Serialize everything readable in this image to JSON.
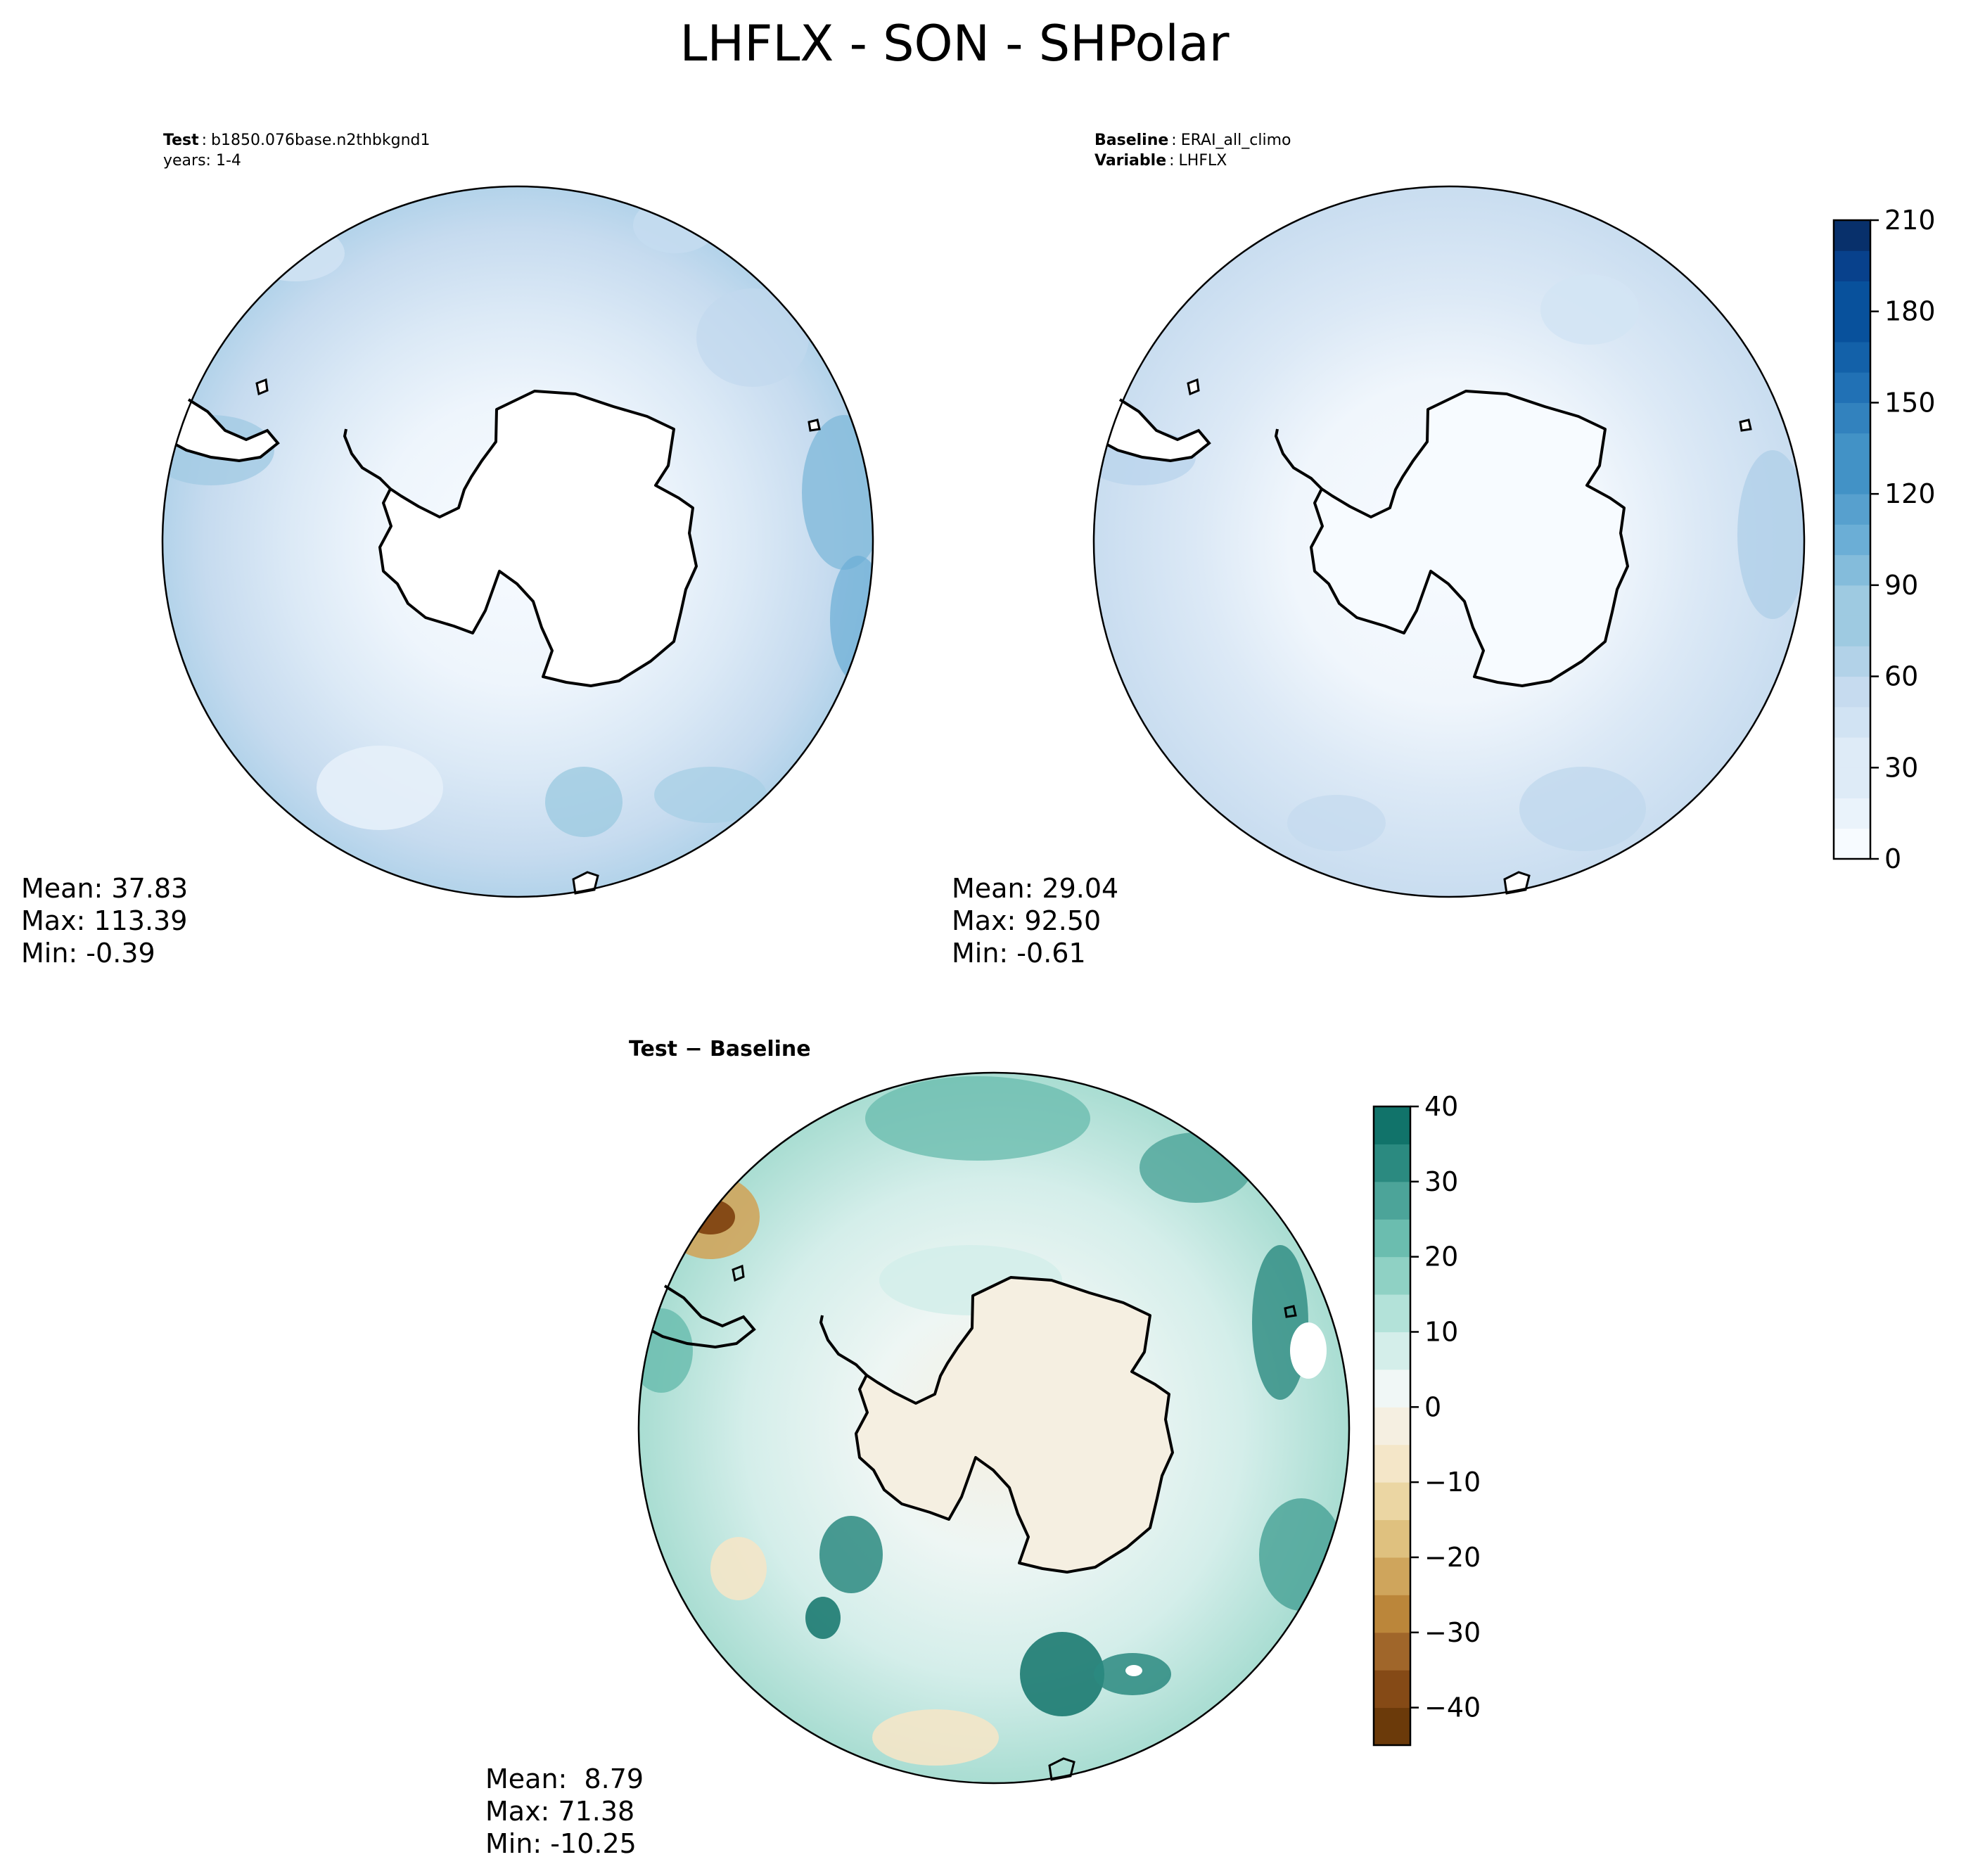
{
  "figure": {
    "title": "LHFLX - SON - SHPolar"
  },
  "chart_data": [
    {
      "type": "heatmap",
      "panel": "test",
      "projection": "south-polar-stereographic",
      "header_label": "Test",
      "header_value": "b1850.076base.n2thbkgnd1",
      "header_line2": "years: 1-4",
      "stats": {
        "mean": "Mean: 37.83",
        "max": "Max: 113.39",
        "min": "Min: -0.39"
      },
      "colormap": "Blues",
      "levels": [
        0,
        210
      ],
      "shared_colorbar": true,
      "field_description": "values mostly 0-60; near zero over Antarctica; higher (~90-110) at outer edges"
    },
    {
      "type": "heatmap",
      "panel": "baseline",
      "projection": "south-polar-stereographic",
      "header_label": "Baseline",
      "header_value": "ERAI_all_climo",
      "header_label2": "Variable",
      "header_value2": "LHFLX",
      "stats": {
        "mean": "Mean: 29.04",
        "max": "Max: 92.50",
        "min": "Min: -0.61"
      },
      "colormap": "Blues",
      "colorbar": {
        "ticks": [
          "210",
          "180",
          "150",
          "120",
          "90",
          "60",
          "30",
          "0"
        ],
        "range": [
          0,
          210
        ],
        "bands": 21
      }
    },
    {
      "type": "heatmap",
      "panel": "difference",
      "projection": "south-polar-stereographic",
      "header": "Test − Baseline",
      "stats": {
        "mean": "Mean:  8.79",
        "max": "Max: 71.38",
        "min": "Min: -10.25"
      },
      "colormap": "BrBG",
      "colorbar": {
        "ticks": [
          "40",
          "30",
          "20",
          "10",
          "0",
          "−10",
          "−20",
          "−30",
          "−40"
        ],
        "range": [
          -45,
          40
        ]
      }
    }
  ],
  "colors": {
    "blues": [
      "#f7fbff",
      "#eaf3fb",
      "#deebf7",
      "#d1e3f3",
      "#c6dbef",
      "#b2d2e8",
      "#9ecae1",
      "#84bcdb",
      "#6baed6",
      "#57a0ce",
      "#4292c6",
      "#3282be",
      "#2171b5",
      "#1361a9",
      "#08519c",
      "#08418c",
      "#08306b"
    ],
    "brbg_pos": [
      "#f0f7f6",
      "#d4eeea",
      "#b3e2d9",
      "#8fd1c4",
      "#6bbdaf",
      "#4ca499",
      "#2b8a80",
      "#11736a",
      "#005c51",
      "#01443b"
    ],
    "brbg_neg": [
      "#f5efe1",
      "#f4e6c8",
      "#ebd6a3",
      "#dfc17f",
      "#cfa55c",
      "#bb863a",
      "#a0662a",
      "#854a16",
      "#6b3a0a",
      "#543005"
    ],
    "coast": "#000000"
  }
}
